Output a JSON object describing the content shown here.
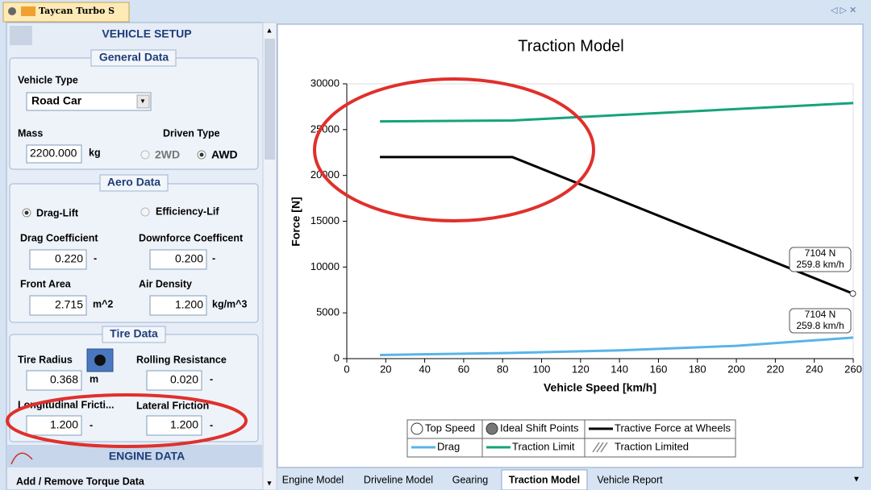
{
  "tab": {
    "title": "Taycan Turbo S"
  },
  "panel": {
    "title": "VEHICLE SETUP",
    "general": {
      "title": "General Data",
      "vehicle_type_label": "Vehicle Type",
      "vehicle_type": "Road Car",
      "mass_label": "Mass",
      "mass": "2200.000",
      "mass_unit": "kg",
      "driven_type_label": "Driven Type",
      "option_2wd": "2WD",
      "option_awd": "AWD"
    },
    "aero": {
      "title": "Aero Data",
      "option_drag_lift": "Drag-Lift",
      "option_efficiency": "Efficiency-Lif",
      "drag_coefficient_label": "Drag Coefficient",
      "drag_coefficient": "0.220",
      "drag_coefficient_unit": "-",
      "downforce_label": "Downforce Coefficent",
      "downforce": "0.200",
      "downforce_unit": "-",
      "front_area_label": "Front Area",
      "front_area": "2.715",
      "front_area_unit": "m^2",
      "air_density_label": "Air Density",
      "air_density": "1.200",
      "air_density_unit": "kg/m^3"
    },
    "tire": {
      "title": "Tire Data",
      "radius_label": "Tire Radius",
      "radius": "0.368",
      "radius_unit": "m",
      "rolling_label": "Rolling Resistance",
      "rolling": "0.020",
      "rolling_unit": "-",
      "long_friction_label": "Longitudinal Fricti...",
      "long_friction": "1.200",
      "long_friction_unit": "-",
      "lat_friction_label": "Lateral Friction",
      "lat_friction": "1.200",
      "lat_friction_unit": "-"
    },
    "engine": {
      "title": "ENGINE DATA",
      "torque_label": "Add / Remove Torque Data"
    }
  },
  "bottom_tabs": [
    "Engine Model",
    "Driveline Model",
    "Gearing",
    "Traction Model",
    "Vehicle Report"
  ],
  "chart_data": {
    "type": "line",
    "title": "Traction Model",
    "x_label": "Vehicle Speed [km/h]",
    "y_label": "Force [N]",
    "xlim": [
      0,
      260
    ],
    "xticks": [
      0,
      20,
      40,
      60,
      80,
      100,
      120,
      140,
      160,
      180,
      200,
      220,
      240,
      260
    ],
    "ylim": [
      0,
      30000
    ],
    "yticks": [
      0,
      5000,
      10000,
      15000,
      20000,
      25000,
      30000
    ],
    "grid": false,
    "series": [
      {
        "name": "Tractive Force at Wheels",
        "color": "#000000",
        "x": [
          17,
          85,
          259.8
        ],
        "values": [
          22000,
          22000,
          7104
        ]
      },
      {
        "name": "Drag",
        "color": "#5ab4e6",
        "x": [
          17,
          80,
          140,
          200,
          260
        ],
        "values": [
          400,
          600,
          900,
          1400,
          2300
        ]
      },
      {
        "name": "Traction Limit",
        "color": "#16a37a",
        "x": [
          17,
          85,
          150,
          260
        ],
        "values": [
          25900,
          26000,
          26700,
          27900
        ]
      },
      {
        "name": "Top Speed",
        "color": "#ffffff",
        "marker": "circle",
        "x": [
          259.8
        ],
        "values": [
          7104
        ]
      }
    ],
    "legend_extra": [
      "Ideal Shift Points",
      "Traction Limited"
    ],
    "annotations": [
      [
        "7104 N",
        "259.8 km/h"
      ],
      [
        "7104 N",
        "259.8 km/h"
      ]
    ]
  }
}
